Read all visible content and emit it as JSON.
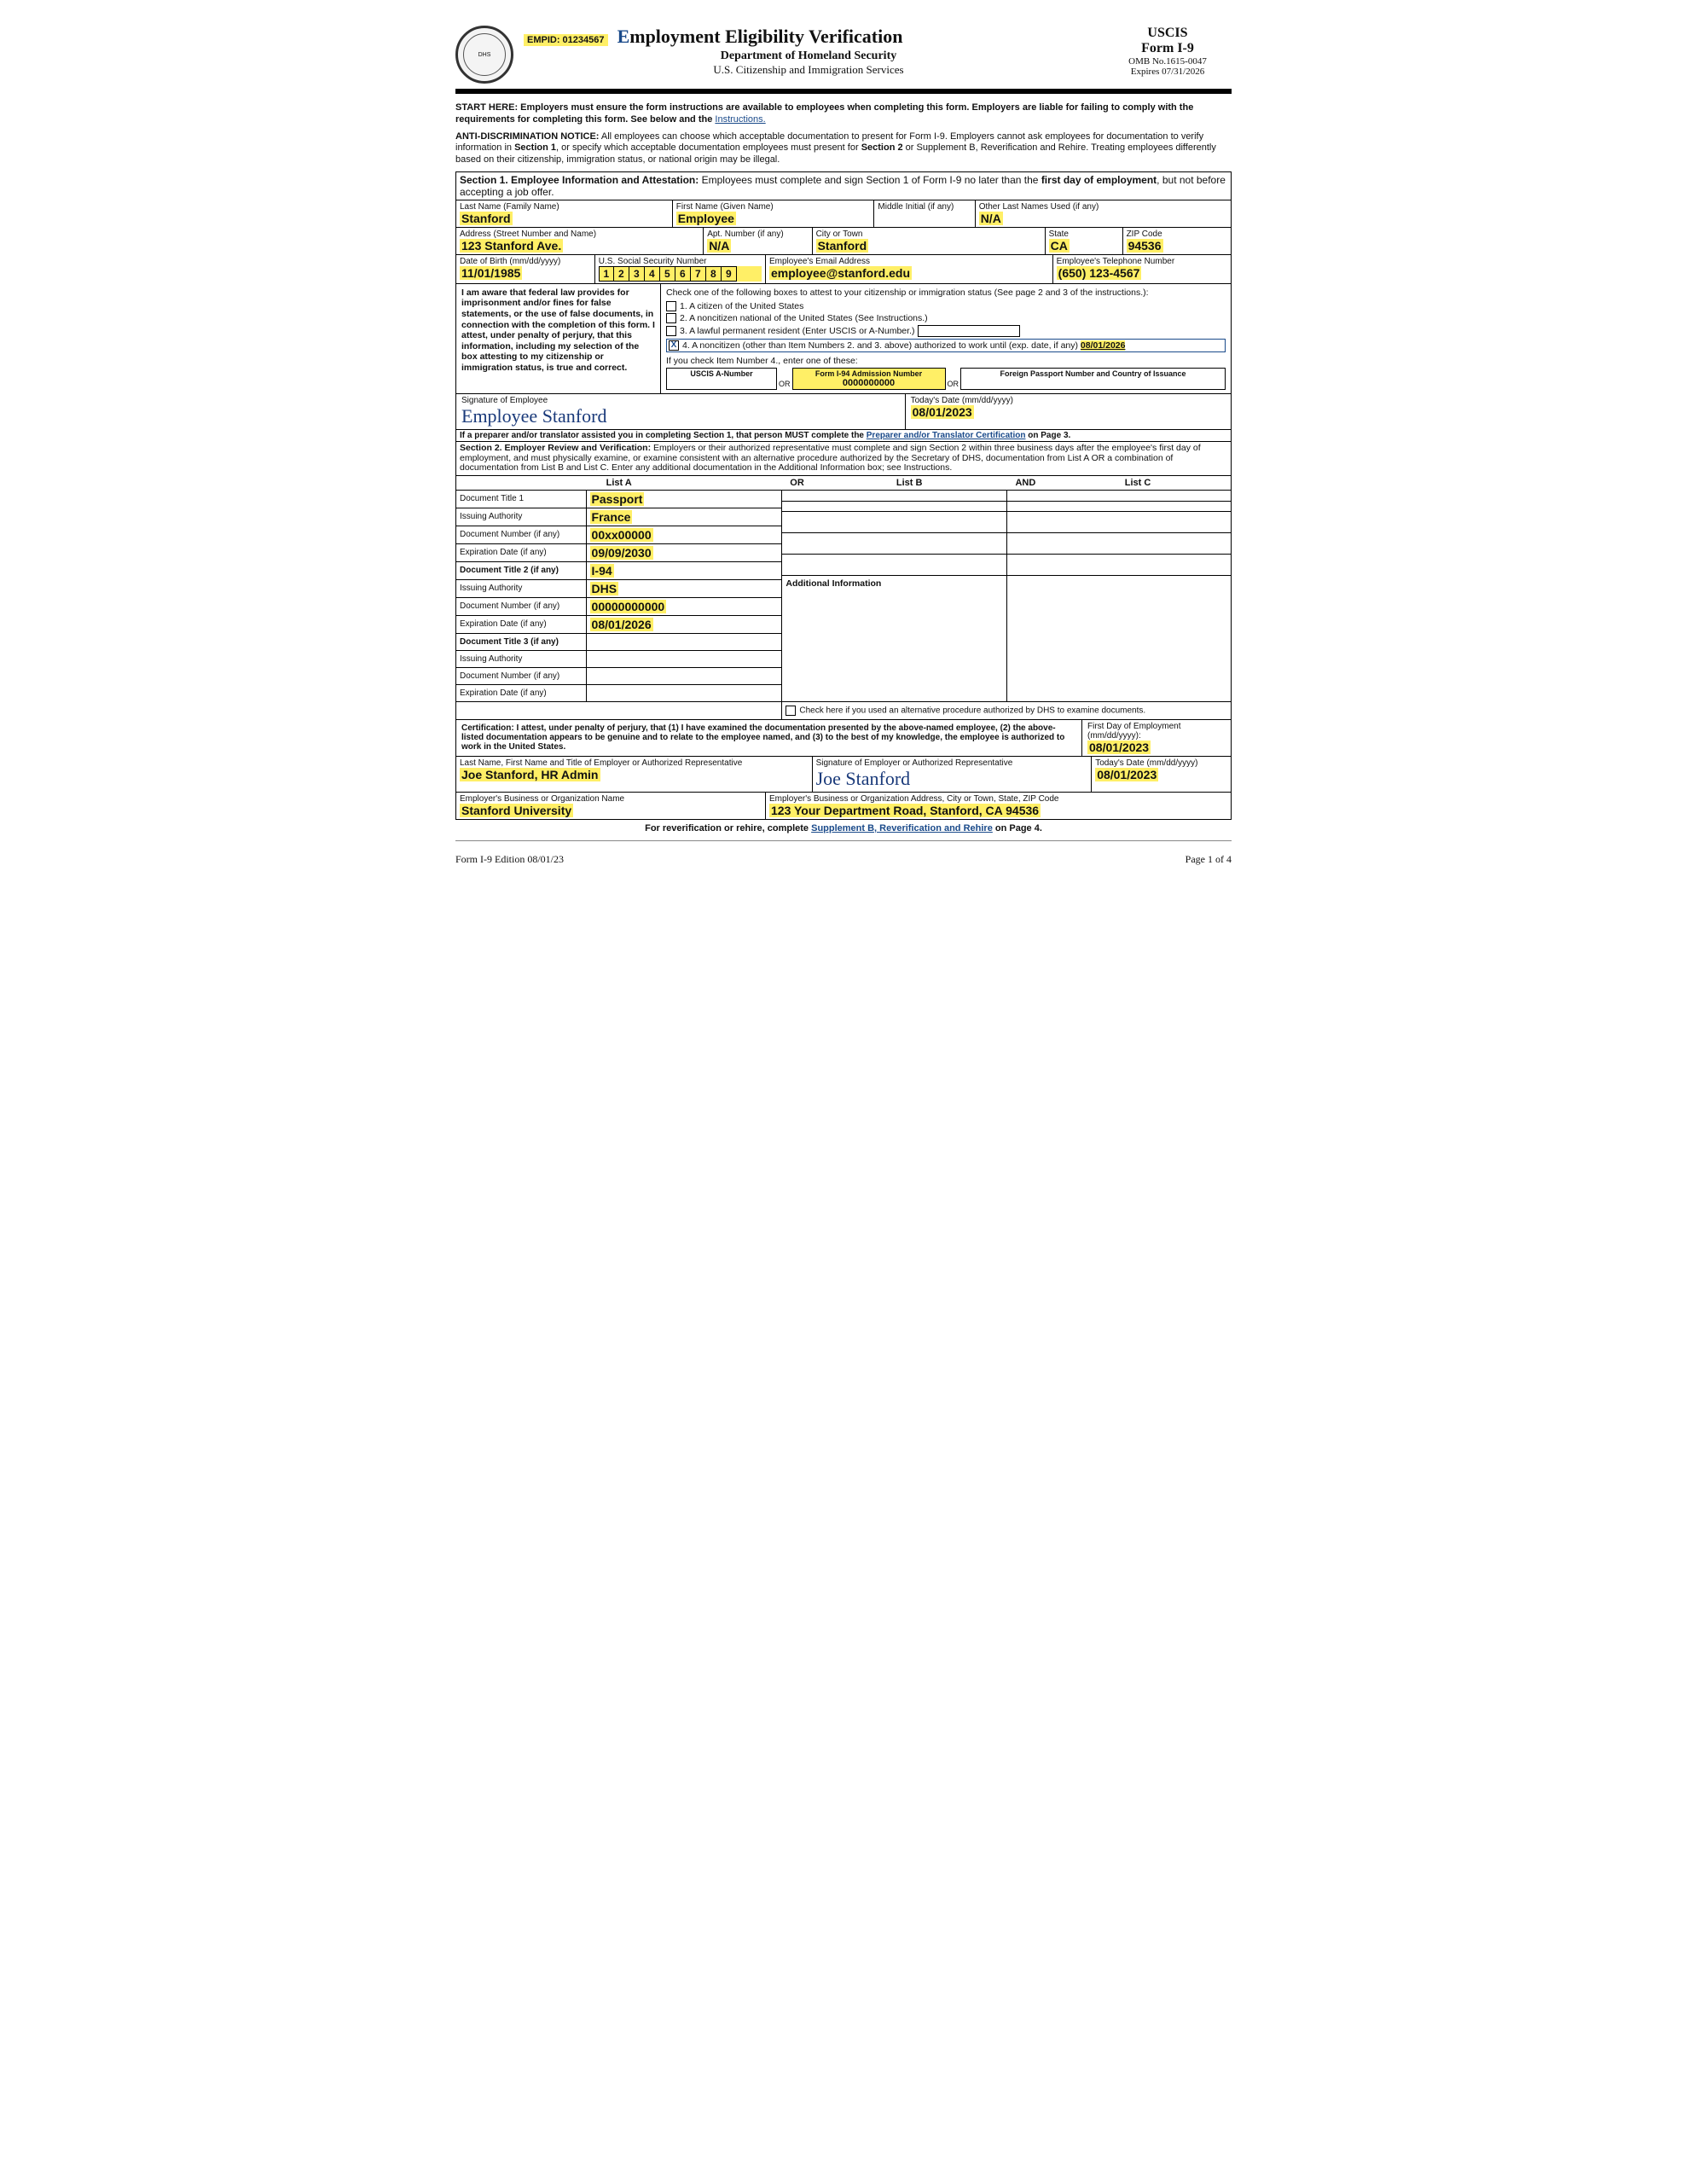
{
  "header": {
    "empid_label": "EMPID: 01234567",
    "title_init": "E",
    "title_rest": "mployment Eligibility Verification",
    "sub1": "Department of Homeland Security",
    "sub2": "U.S. Citizenship and Immigration Services",
    "agency": "USCIS",
    "form": "Form I-9",
    "omb": "OMB No.1615-0047",
    "expires": "Expires 07/31/2026"
  },
  "intro": {
    "start_bold": "START HERE: Employers must ensure the form instructions are available to employees when completing this form. Employers are liable for failing to comply with the requirements for completing this form. See below and the ",
    "instructions_link": "Instructions.",
    "anti_bold": "ANTI-DISCRIMINATION NOTICE:",
    "anti_text_a": " All employees can choose which acceptable documentation to present for Form I-9. Employers cannot ask employees for documentation to verify information in ",
    "sec1": "Section 1",
    "anti_text_b": ", or specify which acceptable documentation employees must present for ",
    "sec2": "Section 2",
    "anti_text_c": " or Supplement B, Reverification and Rehire. Treating employees differently based on their citizenship, immigration status, or national origin may be illegal."
  },
  "section1": {
    "head_a": "Section 1. Employee Information and Attestation:",
    "head_b": " Employees must complete and sign Section 1 of Form I-9 no later than the ",
    "head_c": "first day of employment",
    "head_d": ", but not before accepting a job offer.",
    "labels": {
      "last": "Last Name (Family Name)",
      "first": "First Name (Given Name)",
      "mi": "Middle Initial (if any)",
      "other": "Other Last Names Used (if any)",
      "addr": "Address (Street Number and Name)",
      "apt": "Apt. Number (if any)",
      "city": "City or Town",
      "state": "State",
      "zip": "ZIP Code",
      "dob": "Date of Birth (mm/dd/yyyy)",
      "ssn": "U.S. Social Security Number",
      "email": "Employee's Email Address",
      "phone": "Employee's Telephone Number"
    },
    "values": {
      "last": "Stanford",
      "first": "Employee",
      "mi": "",
      "other": "N/A",
      "addr": "123 Stanford Ave.",
      "apt": "N/A",
      "city": "Stanford",
      "state": "CA",
      "zip": "94536",
      "dob": "11/01/1985",
      "ssn": [
        "1",
        "2",
        "3",
        "4",
        "5",
        "6",
        "7",
        "8",
        "9"
      ],
      "email": "employee@stanford.edu",
      "phone": "(650) 123-4567"
    },
    "attest_left": "I am aware that federal law provides for imprisonment and/or fines for false statements, or the use of false documents, in connection with the completion of this form. I attest, under penalty of perjury, that this information, including my selection of the box attesting to my citizenship or immigration status, is true and correct.",
    "attest_intro": "Check one of the following boxes to attest to your citizenship or immigration status (See page 2 and 3 of the instructions.):",
    "opt1": "1.   A citizen of the United States",
    "opt2": "2.   A noncitizen national of the United States (See Instructions.)",
    "opt3": "3.   A lawful permanent resident (Enter USCIS or A-Number.)",
    "opt4a": "4.   A noncitizen (other than Item Numbers 2. and 3. above) authorized to work until (exp. date, if any) ",
    "opt4_date": "08/01/2026",
    "sub_intro": "If you check Item Number 4., enter one of these:",
    "sub_a_lbl": "USCIS A-Number",
    "sub_b_lbl": "Form I-94 Admission Number",
    "sub_b_val": "0000000000",
    "sub_c_lbl": "Foreign Passport Number and Country of Issuance",
    "or": "OR",
    "sig_lbl": "Signature of Employee",
    "sig_val": "Employee Stanford",
    "date_lbl": "Today's Date (mm/dd/yyyy)",
    "date_val": "08/01/2023",
    "preparer_note_a": "If a preparer and/or translator assisted you in completing Section 1, that person MUST complete the ",
    "preparer_link": "Preparer and/or Translator Certification",
    "preparer_note_b": " on Page 3."
  },
  "section2": {
    "head_a": "Section 2. Employer Review and Verification:",
    "head_b": " Employers or their authorized representative must complete and sign Section 2 within three business days after the employee's first day of employment, and must physically examine, or examine consistent with an alternative procedure authorized by the Secretary of DHS, documentation from List A OR a combination of documentation from List B and List C. Enter any additional documentation in the Additional Information box; see Instructions.",
    "listA": "List A",
    "listB": "List B",
    "listC": "List C",
    "or": "OR",
    "and": "AND",
    "rows": {
      "dt1": "Document Title 1",
      "dt1v": "Passport",
      "ia1": "Issuing Authority",
      "ia1v": "France",
      "dn1": "Document Number (if any)",
      "dn1v": "00xx00000",
      "ed1": "Expiration Date (if any)",
      "ed1v": "09/09/2030",
      "dt2": "Document Title 2 (if any)",
      "dt2v": "I-94",
      "ia2": "Issuing Authority",
      "ia2v": "DHS",
      "dn2": "Document Number (if any)",
      "dn2v": "00000000000",
      "ed2": "Expiration Date (if any)",
      "ed2v": "08/01/2026",
      "dt3": "Document Title 3 (if any)",
      "dt3v": "",
      "ia3": "Issuing Authority",
      "ia3v": "",
      "dn3": "Document Number (if any)",
      "dn3v": "",
      "ed3": "Expiration Date (if any)",
      "ed3v": ""
    },
    "addl_head": "Additional Information",
    "alt_chk": "Check here if you used an alternative procedure authorized by DHS to examine documents.",
    "cert": "Certification: I attest, under penalty of perjury, that (1) I have examined the documentation presented by the above-named employee, (2) the above-listed documentation appears to be genuine and to relate to the employee named, and (3) to the best of my knowledge, the employee is authorized to work in the United States.",
    "first_day_lbl": "First Day of Employment (mm/dd/yyyy):",
    "first_day_val": "08/01/2023",
    "emp_name_lbl": "Last Name, First Name and Title of Employer or Authorized Representative",
    "emp_name_val": "Joe Stanford, HR Admin",
    "emp_sig_lbl": "Signature of Employer or Authorized Representative",
    "emp_sig_val": "Joe Stanford",
    "emp_date_lbl": "Today's Date (mm/dd/yyyy)",
    "emp_date_val": "08/01/2023",
    "org_lbl": "Employer's Business or Organization Name",
    "org_val": "Stanford University",
    "org_addr_lbl": "Employer's Business or Organization Address, City or Town, State, ZIP Code",
    "org_addr_val": "123 Your Department Road, Stanford, CA 94536",
    "rev_a": "For reverification or rehire, complete ",
    "rev_link": "Supplement B, Reverification and Rehire",
    "rev_b": " on Page 4."
  },
  "footer": {
    "left": "Form I-9   Edition   08/01/23",
    "right": "Page 1 of 4"
  }
}
